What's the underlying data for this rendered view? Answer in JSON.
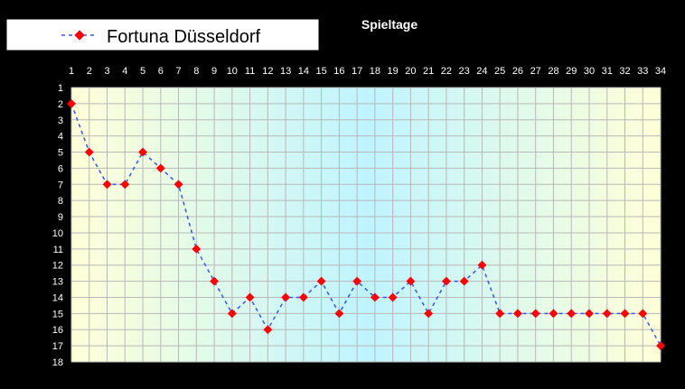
{
  "chart_data": {
    "type": "line",
    "title": "Spieltage",
    "x": [
      1,
      2,
      3,
      4,
      5,
      6,
      7,
      8,
      9,
      10,
      11,
      12,
      13,
      14,
      15,
      16,
      17,
      18,
      19,
      20,
      21,
      22,
      23,
      24,
      25,
      26,
      27,
      28,
      29,
      30,
      31,
      32,
      33,
      34
    ],
    "y_ticks": [
      1,
      2,
      3,
      4,
      5,
      6,
      7,
      8,
      9,
      10,
      11,
      12,
      13,
      14,
      15,
      16,
      17,
      18
    ],
    "xlim": [
      1,
      34
    ],
    "ylim": [
      1,
      18
    ],
    "y_inverted": true,
    "grid": true,
    "legend_position": "top-left",
    "series": [
      {
        "name": "Fortuna Düsseldorf",
        "values": [
          2,
          5,
          7,
          7,
          5,
          6,
          7,
          11,
          13,
          15,
          14,
          16,
          14,
          14,
          13,
          15,
          13,
          14,
          14,
          13,
          15,
          13,
          13,
          12,
          15,
          15,
          15,
          15,
          15,
          15,
          15,
          15,
          15,
          17
        ]
      }
    ],
    "colors": {
      "line": "#3355ff",
      "marker": "#ff0000",
      "grid": "#b8b8b8",
      "gradient_light": "#ffffd8",
      "gradient_cyan": "#bff4ff"
    }
  }
}
